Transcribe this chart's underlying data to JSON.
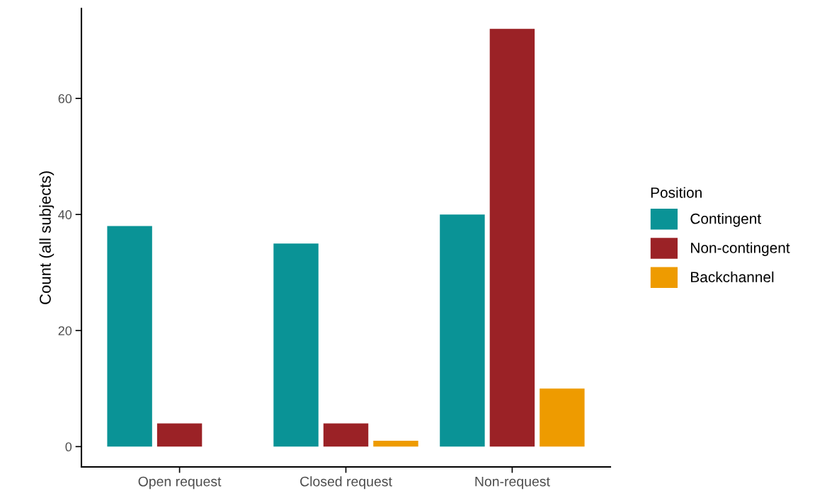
{
  "chart_data": {
    "type": "bar",
    "ylabel": "Count (all subjects)",
    "categories": [
      "Open request",
      "Closed request",
      "Non-request"
    ],
    "series": [
      {
        "name": "Contingent",
        "color": "#0a9396",
        "values": [
          38,
          35,
          40
        ]
      },
      {
        "name": "Non-contingent",
        "color": "#9b2226",
        "values": [
          4,
          4,
          72
        ]
      },
      {
        "name": "Backchannel",
        "color": "#ee9b00",
        "values": [
          null,
          1,
          10
        ]
      }
    ],
    "legend_title": "Position",
    "legend": "right",
    "ylim": [
      -3.5,
      75.5
    ],
    "yticks": [
      0,
      20,
      40,
      60
    ],
    "grid": false
  }
}
